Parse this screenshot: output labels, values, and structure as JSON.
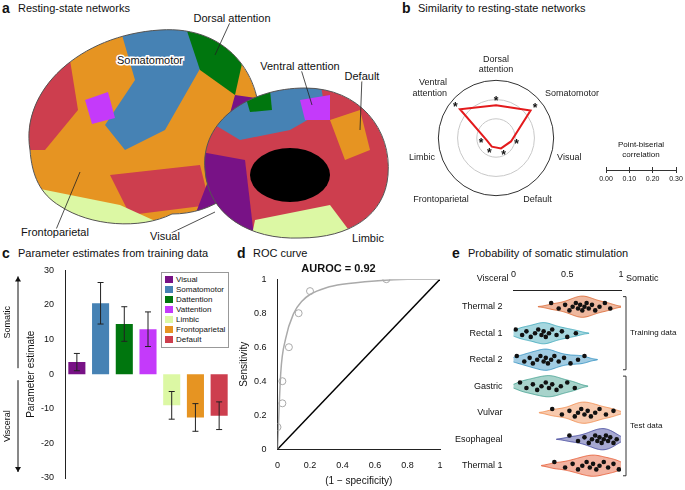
{
  "figure_a": {
    "panel": "a",
    "title": "Resting-state networks",
    "labels": [
      "Somatomotor",
      "Dorsal attention",
      "Frontoparietal",
      "Ventral attention",
      "Default",
      "Visual",
      "Limbic"
    ],
    "colors": [
      "#4682B4",
      "#00760E",
      "#E69422",
      "#C43AFA",
      "#CD3E4E",
      "#781286",
      "#DCF8A4"
    ]
  },
  "chart_data": [
    {
      "panel": "b",
      "type": "radar",
      "title": "Similarity to resting-state networks",
      "categories": [
        "Dorsal attention",
        "Somatomotor",
        "Visual",
        "Default",
        "Frontoparietal",
        "Limbic",
        "Ventral attention"
      ],
      "values": [
        0.17,
        0.23,
        0.08,
        0.06,
        0.05,
        0.05,
        0.24
      ],
      "color": "#E31A1C",
      "annotations": [
        "*",
        "*",
        "*",
        "*",
        "*",
        "*",
        "*"
      ],
      "ylabel": "Point-biserial correlation",
      "ylim": [
        0,
        0.3
      ],
      "yticks": [
        {
          "value": 0,
          "label": "0.00"
        },
        {
          "value": 0.1,
          "label": "0.10"
        },
        {
          "value": 0.2,
          "label": "0.20"
        },
        {
          "value": 0.3,
          "label": "0.30"
        }
      ]
    },
    {
      "panel": "c",
      "type": "bar",
      "title": "Parameter estimates from training data",
      "categories": [
        "Visual",
        "Somatomotor",
        "Dattention",
        "Vattention",
        "Limbic",
        "Frontoparietal",
        "Default"
      ],
      "values": [
        3.5,
        20.5,
        14.5,
        13,
        -9,
        -12.5,
        -12
      ],
      "errors": [
        2.5,
        6,
        5,
        5,
        4,
        4,
        4
      ],
      "colors": [
        "#781286",
        "#4682B4",
        "#00760E",
        "#C43AFA",
        "#DCF8A4",
        "#E69422",
        "#CD3E4E"
      ],
      "ylim": [
        -30,
        30
      ],
      "yticks": [
        -30,
        -20,
        -10,
        0,
        10,
        20,
        30
      ],
      "ylabel": "Parameter estimate",
      "ylabel_up": "Somatic",
      "ylabel_down": "Visceral",
      "legend": "upper right",
      "tick_labels": "y"
    },
    {
      "panel": "d",
      "type": "line",
      "title": "ROC curve",
      "annotation": "AUROC = 0.92",
      "xlabel": "(1 − specificity)",
      "ylabel": "Sensitivity",
      "xlim": [
        0,
        1
      ],
      "ylim": [
        0,
        1
      ],
      "xticks": [
        0,
        0.2,
        0.4,
        0.6,
        0.8,
        1
      ],
      "yticks": [
        0,
        0.2,
        0.4,
        0.6,
        0.8,
        1
      ],
      "series": [
        {
          "type": "line",
          "color": "#AAAAAA",
          "x": [
            0,
            0.02,
            0.05,
            0.1,
            0.15,
            0.2,
            0.3,
            0.4,
            0.6,
            0.8,
            1
          ],
          "values": [
            0,
            0.45,
            0.65,
            0.8,
            0.87,
            0.91,
            0.95,
            0.97,
            0.99,
            1,
            1
          ]
        },
        {
          "type": "scatter",
          "marker": "open circle",
          "color": "#AAAAAA",
          "x": [
            0,
            0.03,
            0.03,
            0.07,
            0.13,
            0.2,
            0.67
          ],
          "values": [
            0.13,
            0.27,
            0.4,
            0.6,
            0.8,
            0.93,
            1
          ]
        },
        {
          "type": "line",
          "color": "#000000",
          "x": [
            0,
            1
          ],
          "values": [
            0,
            1
          ]
        }
      ]
    },
    {
      "panel": "e",
      "type": "strip",
      "title": "Probability of somatic stimulation",
      "xlabel_left": "Visceral",
      "xlabel_right": "Somatic",
      "xlim": [
        0,
        1
      ],
      "xticks": [
        0,
        0.5,
        1
      ],
      "series": [
        {
          "name": "Thermal 2",
          "color": "#D9622B",
          "group": "Training data",
          "values": [
            0.35,
            0.42,
            0.48,
            0.52,
            0.55,
            0.58,
            0.6,
            0.62,
            0.64,
            0.66,
            0.68,
            0.7,
            0.73,
            0.76,
            0.8,
            0.85,
            0.9
          ]
        },
        {
          "name": "Rectal 1",
          "color": "#3AA6B9",
          "group": "Training data",
          "values": [
            0.02,
            0.08,
            0.12,
            0.16,
            0.2,
            0.23,
            0.26,
            0.28,
            0.3,
            0.33,
            0.36,
            0.4,
            0.45,
            0.5,
            0.58
          ]
        },
        {
          "name": "Rectal 2",
          "color": "#2F8FC0",
          "group": "Training data",
          "values": [
            0.03,
            0.1,
            0.15,
            0.18,
            0.22,
            0.25,
            0.28,
            0.3,
            0.32,
            0.35,
            0.38,
            0.42,
            0.47,
            0.53,
            0.6,
            0.66
          ]
        },
        {
          "name": "Gastric",
          "color": "#3C9D8C",
          "group": "Test data",
          "values": [
            0.06,
            0.12,
            0.18,
            0.22,
            0.26,
            0.3,
            0.33,
            0.36,
            0.4,
            0.44,
            0.5,
            0.57
          ]
        },
        {
          "name": "Vulvar",
          "color": "#F08A4B",
          "group": "Test data",
          "values": [
            0.36,
            0.45,
            0.52,
            0.57,
            0.6,
            0.63,
            0.66,
            0.69,
            0.72,
            0.76,
            0.8,
            0.86,
            0.93
          ]
        },
        {
          "name": "Esophageal",
          "color": "#3A3F98",
          "group": "Test data",
          "values": [
            0.52,
            0.6,
            0.66,
            0.7,
            0.73,
            0.76,
            0.78,
            0.8,
            0.82,
            0.84,
            0.86,
            0.88,
            0.9,
            0.93,
            0.96
          ]
        },
        {
          "name": "Thermal 1",
          "color": "#E4572E",
          "group": "Test data",
          "values": [
            0.38,
            0.48,
            0.55,
            0.6,
            0.64,
            0.68,
            0.71,
            0.74,
            0.77,
            0.8,
            0.84,
            0.88,
            0.93,
            0.98
          ]
        }
      ]
    }
  ]
}
